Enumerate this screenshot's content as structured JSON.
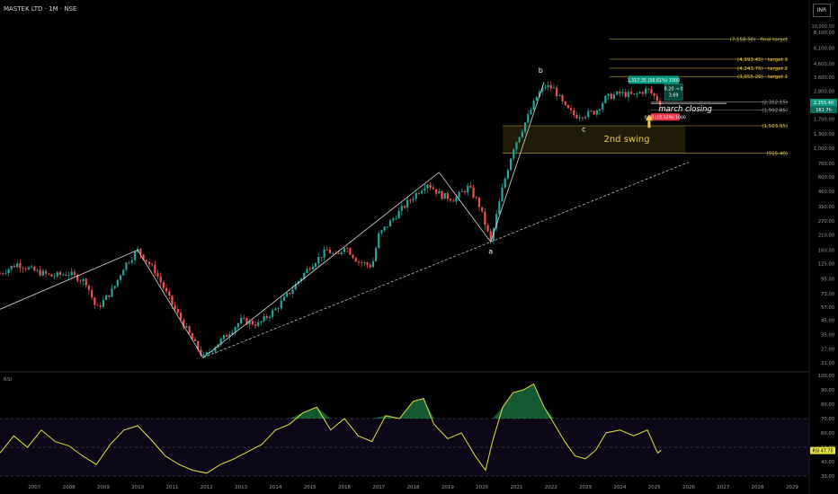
{
  "header": {
    "title": "MASTEK LTD · 1M · NSE",
    "currency": "INR"
  },
  "chart_data": [
    {
      "type": "candlestick",
      "title": "MASTEK LTD · 1M · NSE",
      "scale": "log",
      "y_axis": {
        "top_label": "10,000.00",
        "ticks": [
          8100,
          6100,
          4600,
          3600,
          2800,
          2100,
          1700,
          1300,
          1000,
          760,
          600,
          460,
          350,
          270,
          210,
          160,
          125,
          95,
          73,
          57,
          45,
          35,
          27,
          21
        ],
        "tick_labels": [
          "8,100.00",
          "6,100.00",
          "4,600.00",
          "3,600.00",
          "2,800.00",
          "2,100.00",
          "1,700.00",
          "1,300.00",
          "1,000.00",
          "760.00",
          "600.00",
          "460.00",
          "350.00",
          "270.00",
          "210.00",
          "160.00",
          "125.00",
          "95.00",
          "73.00",
          "57.00",
          "45.00",
          "35.00",
          "27.00",
          "21.00"
        ],
        "last_price_label": "2,255.40",
        "countdown_label": "161 7h"
      },
      "x_axis": {
        "tick_labels": [
          "2007",
          "2008",
          "2009",
          "2010",
          "2011",
          "2012",
          "2013",
          "2014",
          "2015",
          "2016",
          "2017",
          "2018",
          "2019",
          "2020",
          "2021",
          "2022",
          "2023",
          "2024",
          "2025",
          "2026",
          "2027",
          "2028",
          "2029"
        ]
      },
      "price_path": [
        {
          "x": 2006.0,
          "y": 105
        },
        {
          "x": 2006.5,
          "y": 125
        },
        {
          "x": 2007.0,
          "y": 110
        },
        {
          "x": 2007.5,
          "y": 100
        },
        {
          "x": 2008.0,
          "y": 105
        },
        {
          "x": 2008.5,
          "y": 90
        },
        {
          "x": 2008.8,
          "y": 55
        },
        {
          "x": 2009.3,
          "y": 80
        },
        {
          "x": 2009.6,
          "y": 120
        },
        {
          "x": 2010.0,
          "y": 160
        },
        {
          "x": 2010.5,
          "y": 110
        },
        {
          "x": 2011.0,
          "y": 60
        },
        {
          "x": 2011.5,
          "y": 35
        },
        {
          "x": 2011.9,
          "y": 23
        },
        {
          "x": 2012.5,
          "y": 33
        },
        {
          "x": 2013.0,
          "y": 45
        },
        {
          "x": 2013.5,
          "y": 42
        },
        {
          "x": 2014.0,
          "y": 55
        },
        {
          "x": 2014.5,
          "y": 80
        },
        {
          "x": 2015.0,
          "y": 120
        },
        {
          "x": 2015.5,
          "y": 160
        },
        {
          "x": 2015.8,
          "y": 140
        },
        {
          "x": 2016.0,
          "y": 175
        },
        {
          "x": 2016.4,
          "y": 130
        },
        {
          "x": 2016.8,
          "y": 120
        },
        {
          "x": 2017.0,
          "y": 210
        },
        {
          "x": 2017.5,
          "y": 300
        },
        {
          "x": 2018.0,
          "y": 420
        },
        {
          "x": 2018.4,
          "y": 540
        },
        {
          "x": 2018.8,
          "y": 430
        },
        {
          "x": 2019.2,
          "y": 400
        },
        {
          "x": 2019.6,
          "y": 500
        },
        {
          "x": 2019.9,
          "y": 370
        },
        {
          "x": 2020.25,
          "y": 185
        },
        {
          "x": 2020.6,
          "y": 500
        },
        {
          "x": 2020.9,
          "y": 1000
        },
        {
          "x": 2021.3,
          "y": 1700
        },
        {
          "x": 2021.6,
          "y": 2600
        },
        {
          "x": 2021.85,
          "y": 3100
        },
        {
          "x": 2022.1,
          "y": 2900
        },
        {
          "x": 2022.4,
          "y": 2100
        },
        {
          "x": 2022.7,
          "y": 1800
        },
        {
          "x": 2023.0,
          "y": 1850
        },
        {
          "x": 2023.3,
          "y": 1950
        },
        {
          "x": 2023.6,
          "y": 2500
        },
        {
          "x": 2024.0,
          "y": 2700
        },
        {
          "x": 2024.4,
          "y": 2600
        },
        {
          "x": 2024.8,
          "y": 2900
        },
        {
          "x": 2025.1,
          "y": 2400
        },
        {
          "x": 2025.2,
          "y": 2255
        }
      ],
      "waves": [
        {
          "x": 2006.0,
          "y": 55
        },
        {
          "x": 2010.0,
          "y": 160
        },
        {
          "x": 2011.9,
          "y": 23
        },
        {
          "x": 2018.75,
          "y": 650
        },
        {
          "x": 2020.25,
          "y": 185
        },
        {
          "x": 2021.8,
          "y": 3300
        }
      ],
      "trendline": [
        {
          "x": 2011.9,
          "y": 23
        },
        {
          "x": 2026.0,
          "y": 780
        }
      ],
      "wave_labels": [
        {
          "text": "a",
          "x": 2020.25,
          "y": 150
        },
        {
          "text": "b",
          "x": 2021.7,
          "y": 3900
        },
        {
          "text": "c",
          "x": 2022.95,
          "y": 1350
        }
      ],
      "levels": [
        {
          "value": 7158.5,
          "label": "(7,158.50) · final target",
          "color": "#c8c83c"
        },
        {
          "value": 4993.45,
          "label": "(4,993.45) · target 3",
          "color": "#f2c94c"
        },
        {
          "value": 4243.75,
          "label": "(4,243.75) · target 2",
          "color": "#f2c94c"
        },
        {
          "value": 3655.2,
          "label": "(3,655.20) · target 1",
          "color": "#f2c94c"
        },
        {
          "value": 2312.15,
          "label": "(2,312.15)",
          "color": "#b0b0b0"
        },
        {
          "value": 1992.85,
          "label": "(1,992.85)",
          "color": "#b0b0b0"
        },
        {
          "value": 1503.95,
          "label": "(1,503.95)",
          "color": "#f2c94c"
        },
        {
          "value": 915.4,
          "label": "(915.40)",
          "color": "#f2c94c"
        }
      ],
      "zone": {
        "from": 915.4,
        "to": 1503.95,
        "label": "2nd swing"
      },
      "annotations": [
        {
          "text": "march closing",
          "color": "#ffffff"
        },
        {
          "text": "1,317.35 (56.61%) 1000",
          "color": "#089981"
        },
        {
          "text": "8.20 → 0",
          "color": "#089981"
        },
        {
          "text": "3.69",
          "color": "#089981"
        },
        {
          "text": "0.00 (15.12%) 1000",
          "color": "#f23645"
        }
      ]
    },
    {
      "type": "line",
      "title": "RSI",
      "series": [
        {
          "name": "RSI",
          "last_label": "47.75"
        }
      ],
      "ylim": [
        30,
        100
      ],
      "y_tick_labels": [
        "100.00",
        "90.00",
        "80.00",
        "70.00",
        "60.00",
        "50.00",
        "40.00",
        "30.00"
      ],
      "bands": {
        "upper": 70,
        "middle": 50,
        "lower": 30
      },
      "x": [
        2006.0,
        2006.4,
        2006.8,
        2007.2,
        2007.6,
        2008.0,
        2008.4,
        2008.8,
        2009.2,
        2009.6,
        2010.0,
        2010.4,
        2010.8,
        2011.2,
        2011.6,
        2012.0,
        2012.4,
        2012.8,
        2013.2,
        2013.6,
        2014.0,
        2014.4,
        2014.8,
        2015.2,
        2015.6,
        2016.0,
        2016.4,
        2016.8,
        2017.2,
        2017.6,
        2018.0,
        2018.3,
        2018.6,
        2019.0,
        2019.4,
        2019.8,
        2020.1,
        2020.3,
        2020.6,
        2020.9,
        2021.2,
        2021.5,
        2021.8,
        2022.1,
        2022.4,
        2022.7,
        2023.0,
        2023.3,
        2023.6,
        2024.0,
        2024.4,
        2024.8,
        2025.1,
        2025.2
      ],
      "values": [
        46,
        58,
        50,
        62,
        54,
        51,
        44,
        38,
        52,
        62,
        65,
        55,
        44,
        38,
        34,
        32,
        38,
        42,
        47,
        52,
        62,
        66,
        74,
        78,
        62,
        70,
        58,
        54,
        72,
        70,
        82,
        84,
        66,
        56,
        60,
        44,
        34,
        54,
        78,
        88,
        90,
        94,
        78,
        66,
        54,
        44,
        42,
        48,
        60,
        62,
        58,
        62,
        46,
        48
      ]
    }
  ]
}
